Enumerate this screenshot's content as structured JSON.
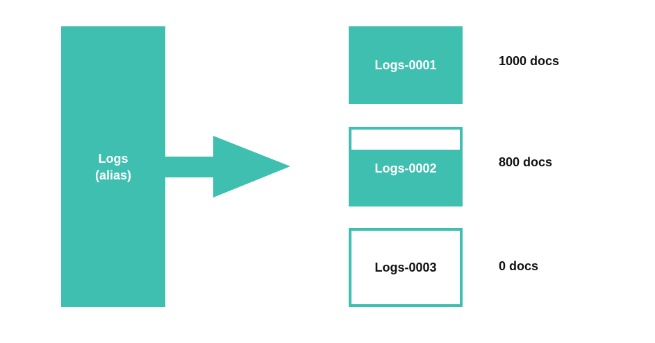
{
  "alias": {
    "name": "Logs",
    "subtitle": "(alias)"
  },
  "indices": [
    {
      "label": "Logs-0001",
      "docs": "1000 docs"
    },
    {
      "label": "Logs-0002",
      "docs": "800 docs"
    },
    {
      "label": "Logs-0003",
      "docs": "0 docs"
    }
  ],
  "colors": {
    "accent": "#3ebfb0",
    "text_dark": "#111111",
    "text_light": "#ffffff",
    "background": "#ffffff"
  }
}
